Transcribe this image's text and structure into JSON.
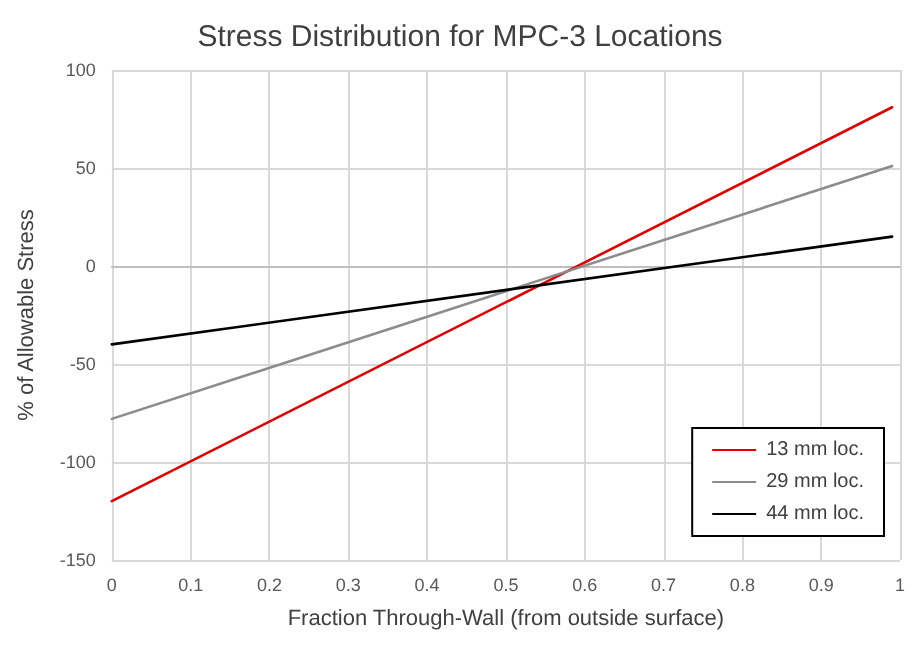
{
  "chart_data": {
    "type": "line",
    "title": "Stress Distribution for MPC-3 Locations",
    "xlabel": "Fraction Through-Wall (from outside surface)",
    "ylabel": "% of Allowable Stress",
    "x": [
      0,
      0.99
    ],
    "series": [
      {
        "name": "13 mm loc.",
        "color": "#e00000",
        "values": [
          -120,
          81
        ]
      },
      {
        "name": "29 mm loc.",
        "color": "#8c8c8c",
        "values": [
          -78,
          51
        ]
      },
      {
        "name": "44 mm loc.",
        "color": "#000000",
        "values": [
          -40,
          15
        ]
      }
    ],
    "xlim": [
      0,
      1
    ],
    "xticks": [
      0,
      0.1,
      0.2,
      0.3,
      0.4,
      0.5,
      0.6,
      0.7,
      0.8,
      0.9,
      1
    ],
    "ylim": [
      -150,
      100
    ],
    "yticks": [
      -150,
      -100,
      -50,
      0,
      50,
      100
    ],
    "grid": true,
    "legend": "bottom right",
    "marker": "none",
    "line_style": "solid"
  }
}
